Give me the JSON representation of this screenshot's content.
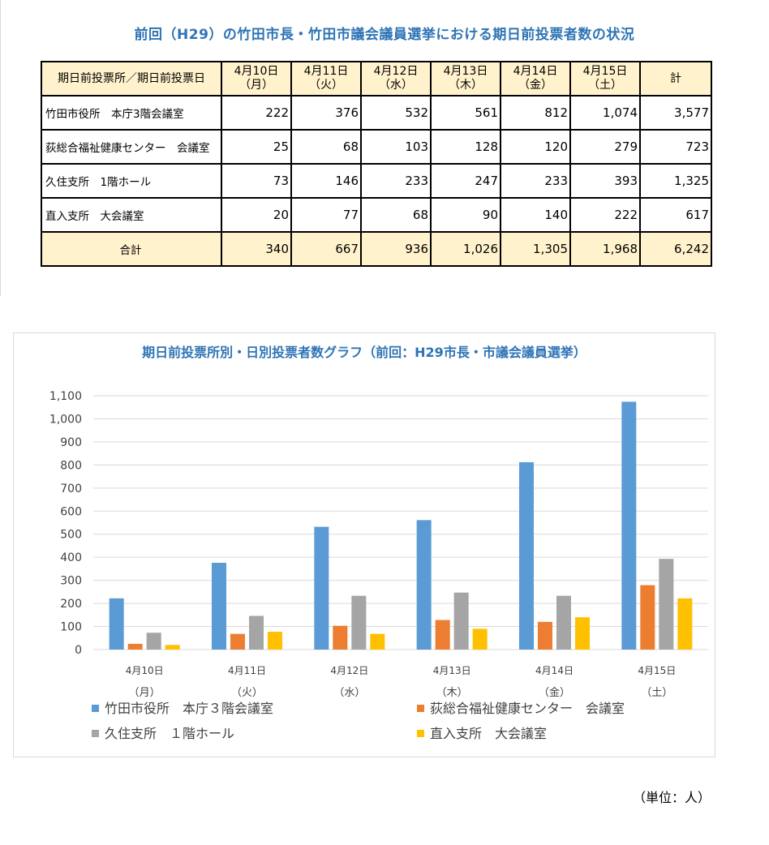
{
  "title": "前回（H29）の竹田市長・竹田市議会議員選挙における期日前投票者数の状況",
  "table": {
    "corner_header": "期日前投票所／期日前投票日",
    "day_headers": [
      {
        "date": "4月10日",
        "dow": "（月）"
      },
      {
        "date": "4月11日",
        "dow": "（火）"
      },
      {
        "date": "4月12日",
        "dow": "（水）"
      },
      {
        "date": "4月13日",
        "dow": "（木）"
      },
      {
        "date": "4月14日",
        "dow": "（金）"
      },
      {
        "date": "4月15日",
        "dow": "（土）"
      }
    ],
    "total_header": "計",
    "rows": [
      {
        "name": "竹田市役所　本庁3階会議室",
        "values": [
          "222",
          "376",
          "532",
          "561",
          "812",
          "1,074"
        ],
        "total": "3,577"
      },
      {
        "name": "荻総合福祉健康センター　会議室",
        "values": [
          "25",
          "68",
          "103",
          "128",
          "120",
          "279"
        ],
        "total": "723"
      },
      {
        "name": "久住支所　1階ホール",
        "values": [
          "73",
          "146",
          "233",
          "247",
          "233",
          "393"
        ],
        "total": "1,325"
      },
      {
        "name": "直入支所　大会議室",
        "values": [
          "20",
          "77",
          "68",
          "90",
          "140",
          "222"
        ],
        "total": "617"
      }
    ],
    "total_row": {
      "name": "合計",
      "values": [
        "340",
        "667",
        "936",
        "1,026",
        "1,305",
        "1,968"
      ],
      "total": "6,242"
    }
  },
  "chart_data": {
    "type": "bar",
    "title": "期日前投票所別・日別投票者数グラフ（前回：H29市長・市議会議員選挙）",
    "categories": [
      "4月10日",
      "4月11日",
      "4月12日",
      "4月13日",
      "4月14日",
      "4月15日"
    ],
    "category_sublabels": [
      "（月）",
      "（火）",
      "（水）",
      "（木）",
      "（金）",
      "（土）"
    ],
    "series": [
      {
        "name": "竹田市役所　本庁３階会議室",
        "values": [
          222,
          376,
          532,
          561,
          812,
          1074
        ],
        "color": "#5b9bd5"
      },
      {
        "name": "荻総合福祉健康センター　会議室",
        "values": [
          25,
          68,
          103,
          128,
          120,
          279
        ],
        "color": "#ed7d31"
      },
      {
        "name": "久住支所　１階ホール",
        "values": [
          73,
          146,
          233,
          247,
          233,
          393
        ],
        "color": "#a5a5a5"
      },
      {
        "name": "直入支所　大会議室",
        "values": [
          20,
          77,
          68,
          90,
          140,
          222
        ],
        "color": "#ffc000"
      }
    ],
    "ylim": [
      0,
      1100
    ],
    "yticks": [
      0,
      100,
      200,
      300,
      400,
      500,
      600,
      700,
      800,
      900,
      1000,
      1100
    ],
    "ytick_labels": [
      "0",
      "100",
      "200",
      "300",
      "400",
      "500",
      "600",
      "700",
      "800",
      "900",
      "1,000",
      "1,100"
    ],
    "grid": true,
    "legend_position": "bottom",
    "title_color": "#2e74b5"
  },
  "unit_note": "（単位：人）"
}
